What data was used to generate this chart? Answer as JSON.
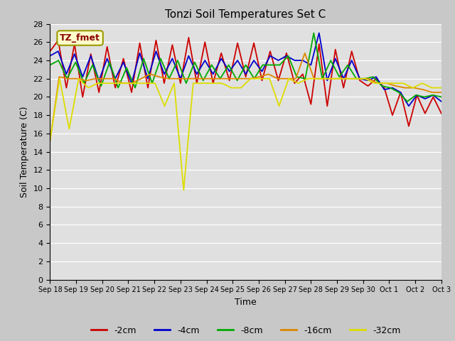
{
  "title": "Tonzi Soil Temperatures Set C",
  "xlabel": "Time",
  "ylabel": "Soil Temperature (C)",
  "ylim": [
    0,
    28
  ],
  "yticks": [
    0,
    2,
    4,
    6,
    8,
    10,
    12,
    14,
    16,
    18,
    20,
    22,
    24,
    26,
    28
  ],
  "annotation_text": "TZ_fmet",
  "annotation_color": "#8b0000",
  "annotation_bg": "#ffffcc",
  "x_labels": [
    "Sep 18",
    "Sep 19",
    "Sep 20",
    "Sep 21",
    "Sep 22",
    "Sep 23",
    "Sep 24",
    "Sep 25",
    "Sep 26",
    "Sep 27",
    "Sep 28",
    "Sep 29",
    "Sep 30",
    "Oct 1",
    "Oct 2",
    "Oct 3"
  ],
  "series": {
    "-2cm": {
      "color": "#cc0000",
      "data": [
        25.0,
        26.2,
        21.0,
        25.8,
        20.0,
        24.7,
        20.5,
        25.5,
        21.0,
        24.2,
        20.5,
        25.9,
        21.0,
        26.2,
        21.5,
        25.7,
        21.5,
        26.5,
        21.5,
        26.0,
        21.5,
        24.8,
        21.8,
        25.9,
        22.2,
        25.9,
        21.8,
        25.0,
        21.8,
        24.8,
        21.5,
        22.5,
        19.2,
        25.8,
        19.0,
        25.2,
        21.0,
        25.0,
        21.8,
        21.2,
        22.0,
        21.0,
        18.0,
        20.5,
        16.8,
        20.2,
        18.2,
        20.0,
        18.2
      ]
    },
    "-4cm": {
      "color": "#0000cc",
      "data": [
        24.5,
        25.0,
        22.5,
        24.7,
        22.2,
        24.5,
        21.8,
        24.2,
        22.0,
        23.8,
        21.5,
        24.8,
        22.0,
        25.0,
        22.5,
        24.2,
        22.0,
        24.5,
        22.5,
        24.0,
        22.5,
        24.2,
        22.8,
        24.0,
        22.5,
        24.0,
        22.8,
        24.5,
        24.0,
        24.5,
        24.0,
        24.0,
        23.5,
        27.0,
        21.8,
        24.2,
        22.0,
        24.0,
        22.0,
        21.8,
        22.2,
        20.8,
        21.0,
        20.5,
        19.0,
        20.2,
        19.8,
        20.2,
        19.5
      ]
    },
    "-8cm": {
      "color": "#00aa00",
      "data": [
        23.5,
        24.0,
        22.0,
        23.8,
        21.5,
        23.5,
        21.2,
        23.8,
        21.0,
        23.2,
        21.0,
        24.2,
        21.5,
        24.2,
        22.0,
        24.0,
        21.5,
        23.8,
        21.8,
        23.5,
        22.0,
        23.5,
        21.8,
        23.5,
        22.0,
        23.5,
        23.5,
        23.5,
        24.5,
        22.2,
        22.0,
        27.0,
        22.0,
        24.0,
        22.2,
        23.5,
        22.0,
        22.0,
        22.2,
        21.2,
        21.0,
        20.5,
        19.5,
        20.2,
        20.0,
        20.2,
        20.0
      ]
    },
    "-16cm": {
      "color": "#dd8800",
      "data": [
        15.2,
        22.2,
        22.0,
        22.0,
        21.8,
        22.0,
        22.0,
        22.0,
        21.5,
        21.5,
        22.0,
        22.5,
        22.2,
        22.0,
        22.0,
        22.0,
        22.0,
        22.0,
        22.0,
        22.0,
        22.0,
        22.0,
        22.0,
        22.2,
        22.5,
        22.0,
        22.0,
        22.0,
        24.8,
        22.0,
        22.0,
        22.0,
        22.0,
        22.0,
        22.0,
        22.0,
        21.5,
        21.5,
        21.2,
        21.0,
        21.0,
        20.8,
        20.5,
        20.5
      ]
    },
    "-32cm": {
      "color": "#dddd00",
      "data": [
        15.3,
        22.0,
        16.5,
        22.0,
        21.0,
        21.5,
        21.5,
        21.5,
        21.5,
        21.5,
        21.5,
        21.5,
        19.0,
        21.5,
        9.8,
        21.5,
        21.5,
        21.5,
        21.5,
        21.0,
        21.0,
        22.0,
        22.0,
        22.0,
        19.0,
        22.0,
        21.5,
        22.0,
        22.0,
        22.0,
        22.0,
        22.0,
        22.0,
        22.0,
        21.5,
        21.5,
        21.5,
        21.5,
        21.0,
        21.5,
        21.0,
        21.0
      ]
    }
  }
}
